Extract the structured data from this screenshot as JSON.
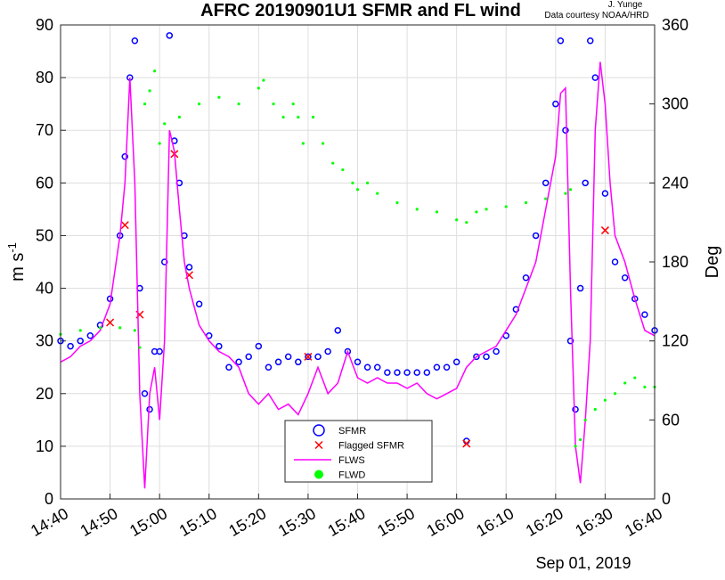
{
  "chart_data": {
    "type": "line",
    "title": "AFRC 20190901U1 SFMR and FL wind",
    "credit": [
      "J. Yunge",
      "Data courtesy NOAA/HRD"
    ],
    "ylabel": {
      "text": "m s",
      "sup": "-1"
    },
    "y2label": "Deg",
    "date_label": "Sep 01, 2019",
    "xlim": [
      "14:40",
      "16:40"
    ],
    "xticks": [
      "14:40",
      "14:50",
      "15:00",
      "15:10",
      "15:20",
      "15:30",
      "15:40",
      "15:50",
      "16:00",
      "16:10",
      "16:20",
      "16:30",
      "16:40"
    ],
    "ylim": [
      0,
      90
    ],
    "yticks": [
      0,
      10,
      20,
      30,
      40,
      50,
      60,
      70,
      80,
      90
    ],
    "y2lim": [
      0,
      360
    ],
    "y2ticks": [
      0,
      60,
      120,
      180,
      240,
      300,
      360
    ],
    "grid": true,
    "legend": "lower center",
    "series": [
      {
        "name": "SFMR",
        "color": "#0000ff",
        "marker": "o",
        "x": [
          "14:40",
          "14:42",
          "14:44",
          "14:46",
          "14:48",
          "14:50",
          "14:52",
          "14:53",
          "14:54",
          "14:55",
          "14:56",
          "14:57",
          "14:58",
          "14:59",
          "15:00",
          "15:01",
          "15:02",
          "15:03",
          "15:04",
          "15:05",
          "15:06",
          "15:08",
          "15:10",
          "15:12",
          "15:14",
          "15:16",
          "15:18",
          "15:20",
          "15:22",
          "15:24",
          "15:26",
          "15:28",
          "15:30",
          "15:32",
          "15:34",
          "15:36",
          "15:38",
          "15:40",
          "15:42",
          "15:44",
          "15:46",
          "15:48",
          "15:50",
          "15:52",
          "15:54",
          "15:56",
          "15:58",
          "16:00",
          "16:02",
          "16:04",
          "16:06",
          "16:08",
          "16:10",
          "16:12",
          "16:14",
          "16:16",
          "16:18",
          "16:20",
          "16:21",
          "16:22",
          "16:23",
          "16:24",
          "16:25",
          "16:26",
          "16:27",
          "16:28",
          "16:30",
          "16:32",
          "16:34",
          "16:36",
          "16:38",
          "16:40"
        ],
        "values": [
          30,
          29,
          30,
          31,
          33,
          38,
          50,
          65,
          80,
          87,
          40,
          20,
          17,
          28,
          28,
          45,
          88,
          68,
          60,
          50,
          44,
          37,
          31,
          29,
          25,
          26,
          27,
          29,
          25,
          26,
          27,
          26,
          27,
          27,
          28,
          32,
          28,
          26,
          25,
          25,
          24,
          24,
          24,
          24,
          24,
          25,
          25,
          26,
          11,
          27,
          27,
          28,
          31,
          36,
          42,
          50,
          60,
          75,
          87,
          70,
          30,
          17,
          40,
          60,
          87,
          80,
          58,
          45,
          42,
          38,
          35,
          32
        ]
      },
      {
        "name": "Flagged SFMR",
        "color": "#ff0000",
        "marker": "x",
        "x": [
          "14:50",
          "14:53",
          "14:56",
          "15:03",
          "15:06",
          "15:30",
          "16:02",
          "16:30"
        ],
        "values": [
          33.5,
          52,
          35,
          65.5,
          42.5,
          27,
          10.5,
          51
        ]
      },
      {
        "name": "FLWS",
        "color": "#ff00ff",
        "marker": "-",
        "x": [
          "14:40",
          "14:42",
          "14:44",
          "14:46",
          "14:48",
          "14:50",
          "14:52",
          "14:53",
          "14:54",
          "14:55",
          "14:56",
          "14:57",
          "14:58",
          "14:59",
          "15:00",
          "15:01",
          "15:02",
          "15:03",
          "15:04",
          "15:05",
          "15:06",
          "15:08",
          "15:10",
          "15:12",
          "15:14",
          "15:16",
          "15:18",
          "15:20",
          "15:22",
          "15:24",
          "15:26",
          "15:28",
          "15:30",
          "15:32",
          "15:34",
          "15:36",
          "15:38",
          "15:40",
          "15:42",
          "15:44",
          "15:46",
          "15:48",
          "15:50",
          "15:52",
          "15:54",
          "15:56",
          "15:58",
          "16:00",
          "16:02",
          "16:04",
          "16:06",
          "16:08",
          "16:10",
          "16:12",
          "16:14",
          "16:16",
          "16:18",
          "16:20",
          "16:21",
          "16:22",
          "16:23",
          "16:24",
          "16:25",
          "16:26",
          "16:27",
          "16:28",
          "16:29",
          "16:30",
          "16:31",
          "16:32",
          "16:34",
          "16:36",
          "16:38",
          "16:40"
        ],
        "values": [
          26,
          27,
          29,
          30,
          32,
          37,
          50,
          60,
          80,
          60,
          20,
          2,
          20,
          25,
          15,
          30,
          70,
          66,
          55,
          45,
          40,
          33,
          30,
          28,
          27,
          25,
          20,
          18,
          20,
          17,
          18,
          16,
          20,
          25,
          20,
          22,
          28,
          23,
          22,
          23,
          22,
          22,
          21,
          22,
          20,
          19,
          20,
          21,
          25,
          27,
          28,
          29,
          32,
          35,
          40,
          45,
          55,
          65,
          77,
          78,
          40,
          10,
          3,
          15,
          30,
          70,
          83,
          75,
          60,
          50,
          45,
          38,
          32,
          31
        ]
      },
      {
        "name": "FLWD",
        "color": "#00ff00",
        "marker": ".",
        "axis": "y2",
        "x": [
          "14:40",
          "14:44",
          "14:48",
          "14:52",
          "14:55",
          "14:56",
          "14:57",
          "14:58",
          "14:59",
          "15:00",
          "15:01",
          "15:04",
          "15:08",
          "15:12",
          "15:16",
          "15:20",
          "15:21",
          "15:23",
          "15:25",
          "15:27",
          "15:28",
          "15:29",
          "15:31",
          "15:33",
          "15:35",
          "15:37",
          "15:39",
          "15:40",
          "15:42",
          "15:44",
          "15:48",
          "15:52",
          "15:56",
          "16:00",
          "16:02",
          "16:04",
          "16:06",
          "16:10",
          "16:14",
          "16:18",
          "16:22",
          "16:23",
          "16:24",
          "16:25",
          "16:26",
          "16:28",
          "16:30",
          "16:32",
          "16:34",
          "16:36",
          "16:38",
          "16:40"
        ],
        "values": [
          125,
          128,
          130,
          130,
          128,
          115,
          300,
          310,
          325,
          270,
          285,
          290,
          300,
          305,
          300,
          312,
          318,
          300,
          290,
          300,
          290,
          270,
          290,
          270,
          255,
          250,
          240,
          235,
          240,
          232,
          225,
          220,
          218,
          212,
          210,
          218,
          220,
          222,
          225,
          228,
          232,
          235,
          40,
          45,
          60,
          68,
          75,
          80,
          88,
          92,
          85,
          85
        ]
      }
    ]
  }
}
